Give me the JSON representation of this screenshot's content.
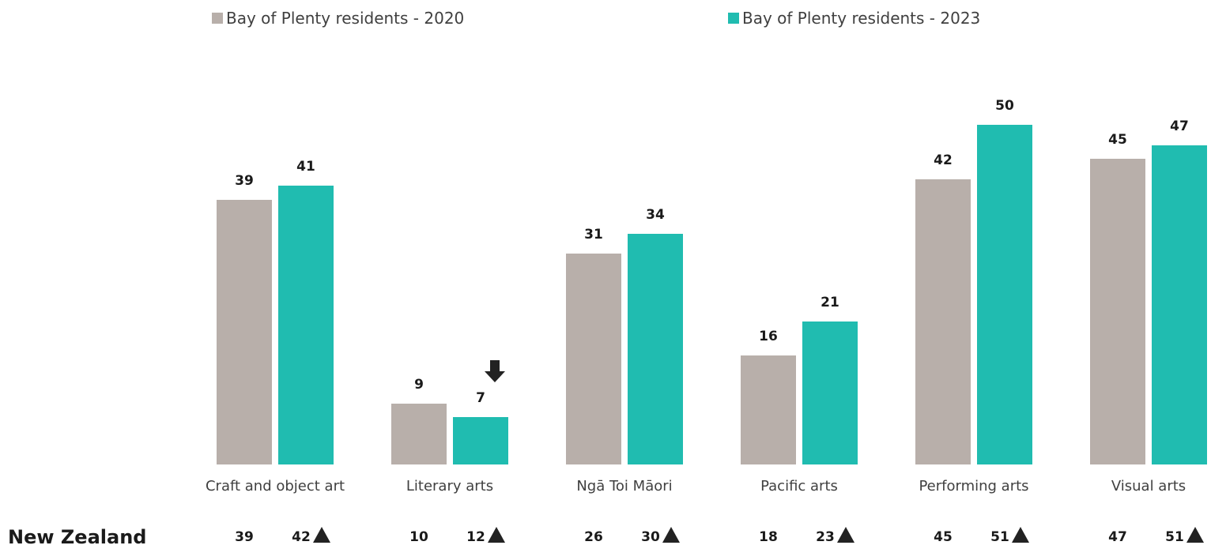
{
  "chart_data": {
    "type": "bar",
    "categories": [
      "Craft and object art",
      "Literary arts",
      "Ngā Toi Māori",
      "Pacific arts",
      "Performing arts",
      "Visual arts"
    ],
    "series": [
      {
        "name": "Bay of Plenty residents - 2020",
        "color": "#b8afaa",
        "values": [
          39,
          9,
          31,
          16,
          42,
          45
        ]
      },
      {
        "name": "Bay of Plenty residents - 2023",
        "color": "#20bcb0",
        "values": [
          41,
          7,
          34,
          21,
          50,
          47
        ],
        "markers": [
          null,
          "down",
          null,
          null,
          null,
          null
        ]
      }
    ],
    "comparison": {
      "label": "New Zealand",
      "series": [
        {
          "values": [
            39,
            10,
            26,
            18,
            45,
            47
          ]
        },
        {
          "values": [
            42,
            12,
            30,
            23,
            51,
            51
          ],
          "markers": [
            "up",
            "up",
            "up",
            "up",
            "up",
            "up"
          ]
        }
      ]
    }
  }
}
